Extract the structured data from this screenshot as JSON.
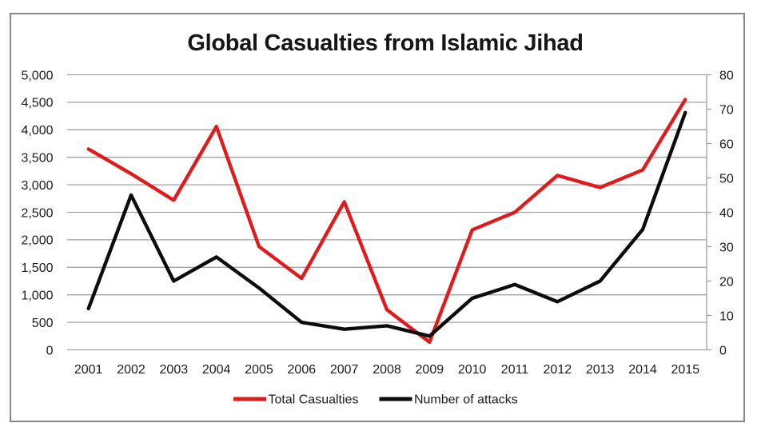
{
  "chart_data": {
    "type": "line",
    "title": "Global Casualties from Islamic Jihad",
    "categories": [
      "2001",
      "2002",
      "2003",
      "2004",
      "2005",
      "2006",
      "2007",
      "2008",
      "2009",
      "2010",
      "2011",
      "2012",
      "2013",
      "2014",
      "2015"
    ],
    "series": [
      {
        "name": "Total Casualties",
        "axis": "left",
        "color": "#e01b1e",
        "values": [
          3650,
          3200,
          2720,
          4060,
          1880,
          1300,
          2690,
          730,
          140,
          2180,
          2500,
          3170,
          2950,
          3270,
          4550
        ]
      },
      {
        "name": "Number of attacks",
        "axis": "right",
        "color": "#0c0c0c",
        "values": [
          12,
          45,
          20,
          27,
          18,
          8,
          6,
          7,
          4,
          15,
          19,
          14,
          20,
          35,
          69
        ]
      }
    ],
    "axes": {
      "left": {
        "min": 0,
        "max": 5000,
        "step": 500,
        "tick_labels": [
          "0",
          "500",
          "1,000",
          "1,500",
          "2,000",
          "2,500",
          "3,000",
          "3,500",
          "4,000",
          "4,500",
          "5,000"
        ]
      },
      "right": {
        "min": 0,
        "max": 80,
        "step": 10,
        "tick_labels": [
          "0",
          "10",
          "20",
          "30",
          "40",
          "50",
          "60",
          "70",
          "80"
        ]
      }
    },
    "grid": "horizontal",
    "legend_position": "bottom",
    "legend": [
      "Total Casualties",
      "Number of attacks"
    ],
    "colors": {
      "gridline": "#a2a2a2",
      "axis_line": "#a2a2a2",
      "border": "#898989",
      "background": "#ffffff",
      "text": "#1c1c1c"
    }
  }
}
